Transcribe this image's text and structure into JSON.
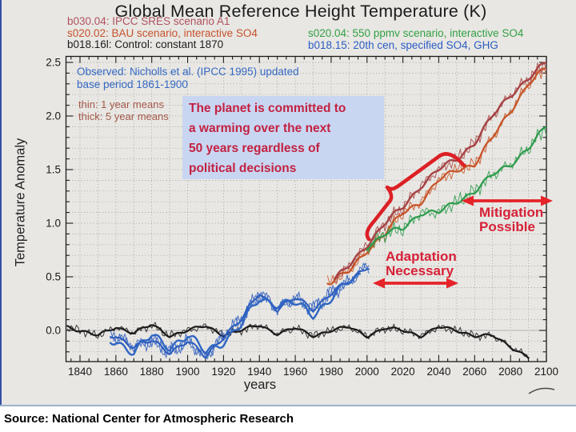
{
  "slide": {
    "source_caption": "Source:  National Center for Atmospheric Research"
  },
  "chart_data": {
    "type": "line",
    "title": "Global Mean Reference Height Temperature (K)",
    "xlabel": "years",
    "ylabel": "Temperature Anomaly",
    "xlim": [
      1832,
      2100
    ],
    "ylim": [
      -0.29,
      2.56
    ],
    "x_ticks": [
      1840,
      1860,
      1880,
      1900,
      1920,
      1940,
      1960,
      1980,
      2000,
      2020,
      2040,
      2060,
      2080,
      2100
    ],
    "y_ticks": [
      0.0,
      0.5,
      1.0,
      1.5,
      2.0,
      2.5
    ],
    "grid": "fine dotted minor grid, 10-year by 0.1-K spacing",
    "legend_position": "top, two columns above plot",
    "legend_left": [
      {
        "label": "b030.04: IPCC SRES scenario A1",
        "color": "#b0525f"
      },
      {
        "label": "s020.02: BAU scenario, interactive SO4",
        "color": "#c7512c"
      },
      {
        "label": "b018.16l: Control: constant 1870",
        "color": "#1c1c1c"
      }
    ],
    "legend_right": [
      {
        "label": "s020.04: 550 ppmv scenario, interactive SO4",
        "color": "#33a045"
      },
      {
        "label": "b018.15: 20th cen, specified SO4, GHG",
        "color": "#2b5cc4"
      }
    ],
    "notes": {
      "observed_line1": "Observed: Nicholls et al. (IPCC 1995) updated",
      "observed_line2": "base period 1861-1900",
      "observed_color": "#3568c4",
      "means_line1": "thin: 1 year means",
      "means_line2": "thick: 5 year means",
      "means_color": "#a5594a"
    },
    "series": [
      {
        "id": "control",
        "name": "b018.16l Control: constant 1870",
        "color": "#1c1c1c",
        "x0": 1830,
        "dx": 10,
        "range": [
          1833,
          2090
        ],
        "values": [
          0.05,
          0.0,
          -0.05,
          0.03,
          -0.02,
          0.05,
          -0.05,
          0.0,
          0.04,
          -0.04,
          0.0,
          0.05,
          -0.03,
          0.02,
          -0.05,
          0.0,
          0.03,
          -0.05,
          0.02,
          0.0,
          -0.05,
          0.03,
          0.0,
          -0.05,
          -0.05,
          -0.15,
          -0.25
        ]
      },
      {
        "id": "cen20",
        "name": "b018.15 20th cen, specified SO4, GHG",
        "color": "#2b5cbe",
        "x0": 1860,
        "dx": 10,
        "range": [
          1857,
          2001
        ],
        "values": [
          -0.05,
          -0.15,
          -0.1,
          -0.2,
          -0.1,
          -0.25,
          -0.05,
          0.1,
          0.35,
          0.2,
          0.3,
          0.2,
          0.35,
          0.45,
          0.6
        ]
      },
      {
        "id": "observed",
        "name": "Observed (Nicholls et al., IPCC 1995 updated)",
        "color": "#2f66c4",
        "x0": 1860,
        "dx": 10,
        "range": [
          1857,
          1996
        ],
        "values": [
          -0.1,
          -0.2,
          -0.05,
          -0.15,
          -0.05,
          -0.2,
          -0.1,
          0.05,
          0.3,
          0.25,
          0.25,
          0.15,
          0.3,
          0.45,
          0.55
        ]
      },
      {
        "id": "bau",
        "name": "s020.02 BAU scenario, interactive SO4",
        "color": "#c75327",
        "x0": 1980,
        "dx": 10,
        "range": [
          1978,
          2100
        ],
        "values": [
          0.45,
          0.55,
          0.75,
          0.9,
          1.1,
          1.2,
          1.4,
          1.5,
          1.55,
          1.8,
          2.05,
          2.3,
          2.45
        ]
      },
      {
        "id": "a1",
        "name": "b030.04 IPCC SRES scenario A1",
        "color": "#a64244",
        "x0": 1980,
        "dx": 10,
        "range": [
          1982,
          2100
        ],
        "values": [
          0.45,
          0.6,
          0.8,
          1.0,
          1.15,
          1.35,
          1.5,
          1.6,
          1.75,
          2.0,
          2.2,
          2.35,
          2.5
        ]
      },
      {
        "id": "green550",
        "name": "s020.04 550 ppmv scenario, interactive SO4",
        "color": "#2e9b4e",
        "x0": 2000,
        "dx": 10,
        "range": [
          2000,
          2100
        ],
        "values": [
          0.78,
          0.9,
          0.95,
          1.1,
          1.1,
          1.2,
          1.3,
          1.45,
          1.55,
          1.7,
          1.9
        ]
      }
    ]
  },
  "annotations": {
    "callout": {
      "lines": [
        "The planet is committed to",
        "a warming over the next",
        "50 years regardless of",
        "political decisions"
      ],
      "bg": "#c9d6f2",
      "color": "#c22240"
    },
    "mitigation": {
      "line1": "Mitigation",
      "line2": "Possible"
    },
    "adaptation": {
      "line1": "Adaptation",
      "line2": "Necessary"
    },
    "label_color": "#d62137",
    "arrow_color": "#e52329",
    "brace_color": "#dc2026"
  }
}
